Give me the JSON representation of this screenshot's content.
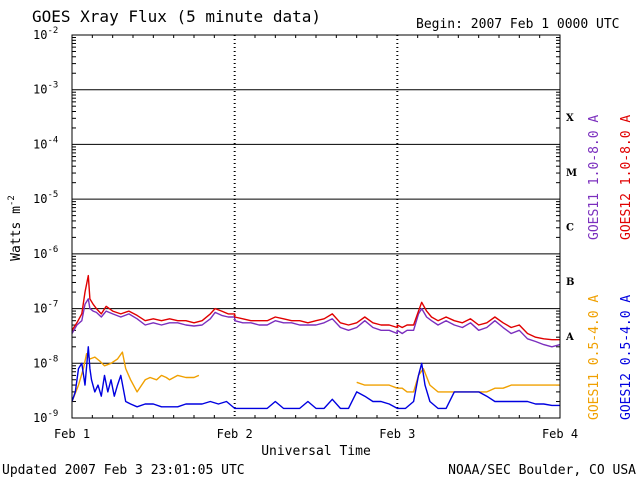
{
  "chart_data": {
    "type": "line",
    "title": "GOES Xray Flux (5 minute data)",
    "begin_label": "Begin:  2007 Feb 1 0000 UTC",
    "xlabel": "Universal Time",
    "ylabel": "Watts m",
    "ylabel_sup": "-2",
    "y_scale": "log",
    "ylim": [
      1e-09,
      0.01
    ],
    "y_tick_exponents": [
      "-9",
      "-8",
      "-7",
      "-6",
      "-5",
      "-4",
      "-3",
      "-2"
    ],
    "x_tick_labels": [
      "Feb 1",
      "Feb 2",
      "Feb 3",
      "Feb 4"
    ],
    "xlim_days": [
      0,
      3
    ],
    "grid": "horizontal lines at each decade; dotted verticals at day boundaries",
    "flare_classes": [
      {
        "label": "X",
        "decade": -4
      },
      {
        "label": "M",
        "decade": -5
      },
      {
        "label": "C",
        "decade": -6
      },
      {
        "label": "B",
        "decade": -7
      },
      {
        "label": "A",
        "decade": -8
      }
    ],
    "series": [
      {
        "name": "GOES11 1.0-8.0 A",
        "color": "#7b2fbe",
        "x_days": [
          0.0,
          0.03,
          0.06,
          0.08,
          0.1,
          0.11,
          0.13,
          0.15,
          0.18,
          0.21,
          0.25,
          0.3,
          0.35,
          0.4,
          0.45,
          0.5,
          0.55,
          0.6,
          0.65,
          0.7,
          0.75,
          0.8,
          0.85,
          0.88,
          0.92,
          0.96,
          1.0,
          1.0,
          1.05,
          1.1,
          1.15,
          1.2,
          1.25,
          1.3,
          1.35,
          1.4,
          1.45,
          1.5,
          1.55,
          1.6,
          1.65,
          1.7,
          1.75,
          1.8,
          1.85,
          1.9,
          1.95,
          2.0,
          2.0,
          2.03,
          2.06,
          2.1,
          2.13,
          2.15,
          2.18,
          2.21,
          2.25,
          2.3,
          2.35,
          2.4,
          2.45,
          2.5,
          2.55,
          2.6,
          2.65,
          2.7,
          2.75,
          2.8,
          2.85,
          2.9,
          2.95,
          3.0
        ],
        "y": [
          3.5e-08,
          5e-08,
          6e-08,
          1.2e-07,
          1.5e-07,
          1e-07,
          9e-08,
          8.5e-08,
          7e-08,
          9e-08,
          8e-08,
          7e-08,
          8e-08,
          6.5e-08,
          5e-08,
          5.5e-08,
          5e-08,
          5.5e-08,
          5.5e-08,
          5e-08,
          4.8e-08,
          5e-08,
          6.5e-08,
          8.5e-08,
          7.5e-08,
          7e-08,
          7e-08,
          6e-08,
          5.5e-08,
          5.5e-08,
          5e-08,
          5e-08,
          6e-08,
          5.5e-08,
          5.5e-08,
          5e-08,
          5e-08,
          5e-08,
          5.5e-08,
          6.5e-08,
          4.5e-08,
          4e-08,
          4.5e-08,
          6e-08,
          4.5e-08,
          4e-08,
          4e-08,
          3.5e-08,
          4e-08,
          3.5e-08,
          4e-08,
          4e-08,
          8e-08,
          1e-07,
          7e-08,
          6e-08,
          5e-08,
          6e-08,
          5e-08,
          4.5e-08,
          5.5e-08,
          4e-08,
          4.5e-08,
          6e-08,
          4.5e-08,
          3.5e-08,
          4e-08,
          2.8e-08,
          2.5e-08,
          2.2e-08,
          2e-08,
          2.2e-08
        ]
      },
      {
        "name": "GOES12 1.0-8.0 A",
        "color": "#e00000",
        "x_days": [
          0.0,
          0.03,
          0.06,
          0.08,
          0.1,
          0.11,
          0.13,
          0.15,
          0.18,
          0.21,
          0.25,
          0.3,
          0.35,
          0.4,
          0.45,
          0.5,
          0.55,
          0.6,
          0.65,
          0.7,
          0.75,
          0.8,
          0.85,
          0.88,
          0.92,
          0.96,
          1.0,
          1.0,
          1.05,
          1.1,
          1.15,
          1.2,
          1.25,
          1.3,
          1.35,
          1.4,
          1.45,
          1.5,
          1.55,
          1.6,
          1.65,
          1.7,
          1.75,
          1.8,
          1.85,
          1.9,
          1.95,
          2.0,
          2.0,
          2.03,
          2.06,
          2.1,
          2.13,
          2.15,
          2.18,
          2.21,
          2.25,
          2.3,
          2.35,
          2.4,
          2.45,
          2.5,
          2.55,
          2.6,
          2.65,
          2.7,
          2.75,
          2.8,
          2.85,
          2.9,
          2.95,
          3.0
        ],
        "y": [
          4e-08,
          5.5e-08,
          8e-08,
          2e-07,
          4e-07,
          1.5e-07,
          1.2e-07,
          1e-07,
          8e-08,
          1.1e-07,
          9e-08,
          8e-08,
          9e-08,
          7.5e-08,
          6e-08,
          6.5e-08,
          6e-08,
          6.5e-08,
          6e-08,
          6e-08,
          5.5e-08,
          6e-08,
          8e-08,
          1e-07,
          9e-08,
          8e-08,
          8e-08,
          7e-08,
          6.5e-08,
          6e-08,
          6e-08,
          6e-08,
          7e-08,
          6.5e-08,
          6e-08,
          6e-08,
          5.5e-08,
          6e-08,
          6.5e-08,
          8e-08,
          5.5e-08,
          5e-08,
          5.5e-08,
          7e-08,
          5.5e-08,
          5e-08,
          5e-08,
          4.5e-08,
          5e-08,
          4.5e-08,
          5e-08,
          5e-08,
          9e-08,
          1.3e-07,
          9e-08,
          7e-08,
          6e-08,
          7e-08,
          6e-08,
          5.5e-08,
          6.5e-08,
          5e-08,
          5.5e-08,
          7e-08,
          5.5e-08,
          4.5e-08,
          5e-08,
          3.5e-08,
          3e-08,
          2.8e-08,
          2.7e-08,
          2.7e-08
        ]
      },
      {
        "name": "GOES11 0.5-4.0 A",
        "color": "#f0a000",
        "x_days": [
          0.0,
          0.04,
          0.07,
          0.09,
          0.11,
          0.14,
          0.17,
          0.2,
          0.24,
          0.28,
          0.31,
          0.33,
          0.36,
          0.4,
          0.45,
          0.48,
          0.52,
          0.55,
          0.58,
          0.6,
          0.65,
          0.7,
          0.75,
          0.78,
          null,
          1.75,
          1.8,
          1.85,
          1.9,
          1.95,
          2.0,
          2.03,
          2.06,
          2.1,
          2.13,
          2.16,
          2.2,
          2.25,
          2.3,
          2.35,
          2.4,
          2.45,
          2.5,
          2.55,
          2.6,
          2.65,
          2.7,
          2.75,
          2.8,
          2.85,
          2.9,
          2.95,
          3.0
        ],
        "y": [
          2e-09,
          4e-09,
          8e-09,
          1.5e-08,
          1.2e-08,
          1.3e-08,
          1.1e-08,
          9e-09,
          1e-08,
          1.2e-08,
          1.6e-08,
          8e-09,
          5e-09,
          3e-09,
          5e-09,
          5.5e-09,
          5e-09,
          6e-09,
          5.5e-09,
          5e-09,
          6e-09,
          5.5e-09,
          5.5e-09,
          6e-09,
          null,
          4.5e-09,
          4e-09,
          4e-09,
          4e-09,
          4e-09,
          3.5e-09,
          3.5e-09,
          3e-09,
          3e-09,
          6e-09,
          8e-09,
          4e-09,
          3e-09,
          3e-09,
          3e-09,
          3e-09,
          3e-09,
          3e-09,
          3e-09,
          3.5e-09,
          3.5e-09,
          4e-09,
          4e-09,
          4e-09,
          4e-09,
          4e-09,
          4e-09,
          4e-09
        ]
      },
      {
        "name": "GOES12 0.5-4.0 A",
        "color": "#0000e0",
        "x_days": [
          0.0,
          0.02,
          0.04,
          0.06,
          0.08,
          0.1,
          0.11,
          0.12,
          0.14,
          0.16,
          0.18,
          0.2,
          0.22,
          0.24,
          0.26,
          0.28,
          0.3,
          0.33,
          0.36,
          0.4,
          0.45,
          0.5,
          0.55,
          0.6,
          0.65,
          0.7,
          0.75,
          0.8,
          0.85,
          0.9,
          0.95,
          1.0,
          1.0,
          1.05,
          1.1,
          1.15,
          1.2,
          1.25,
          1.3,
          1.35,
          1.4,
          1.45,
          1.5,
          1.55,
          1.6,
          1.65,
          1.7,
          1.75,
          1.8,
          1.85,
          1.9,
          1.95,
          2.0,
          2.0,
          2.05,
          2.1,
          2.13,
          2.15,
          2.17,
          2.2,
          2.25,
          2.3,
          2.35,
          2.4,
          2.45,
          2.5,
          2.55,
          2.6,
          2.65,
          2.7,
          2.75,
          2.8,
          2.85,
          2.9,
          2.95,
          3.0
        ],
        "y": [
          2e-09,
          3e-09,
          8e-09,
          1e-08,
          4e-09,
          2e-08,
          8e-09,
          5e-09,
          3e-09,
          4e-09,
          2.5e-09,
          6e-09,
          3e-09,
          5e-09,
          2.5e-09,
          4e-09,
          6e-09,
          2e-09,
          1.8e-09,
          1.6e-09,
          1.8e-09,
          1.8e-09,
          1.6e-09,
          1.6e-09,
          1.6e-09,
          1.8e-09,
          1.8e-09,
          1.8e-09,
          2e-09,
          1.8e-09,
          2e-09,
          1.5e-09,
          1.5e-09,
          1.5e-09,
          1.5e-09,
          1.5e-09,
          1.5e-09,
          2e-09,
          1.5e-09,
          1.5e-09,
          1.5e-09,
          2e-09,
          1.5e-09,
          1.5e-09,
          2.2e-09,
          1.5e-09,
          1.5e-09,
          3e-09,
          2.5e-09,
          2e-09,
          2e-09,
          1.8e-09,
          1.5e-09,
          1.5e-09,
          1.5e-09,
          2e-09,
          6e-09,
          1e-08,
          4e-09,
          2e-09,
          1.5e-09,
          1.5e-09,
          3e-09,
          3e-09,
          3e-09,
          3e-09,
          2.5e-09,
          2e-09,
          2e-09,
          2e-09,
          2e-09,
          2e-09,
          1.8e-09,
          1.8e-09,
          1.7e-09,
          1.7e-09
        ]
      }
    ]
  },
  "footer": {
    "updated": "Updated 2007 Feb  3 23:01:05 UTC",
    "credit": "NOAA/SEC Boulder, CO USA"
  }
}
